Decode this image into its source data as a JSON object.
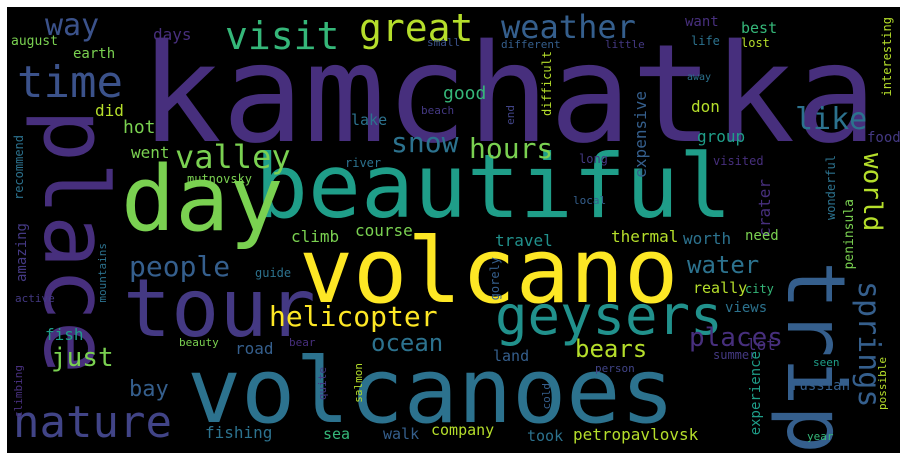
{
  "palette": {
    "background": "#000000",
    "deep_purple": "#472f7d",
    "purple": "#443983",
    "indigo": "#3b528b",
    "slate": "#414487",
    "steel_blue": "#355f8d",
    "blue": "#2c728e",
    "teal": "#21918c",
    "sea_green": "#1f9e89",
    "green": "#35b779",
    "yellow_green": "#7ad151",
    "lime": "#b5de2b",
    "yellow": "#fde725"
  },
  "words": {
    "kamchatka": "kamchatka",
    "volcano": "volcano",
    "volcanoes": "volcanoes",
    "beautiful": "beautiful",
    "place": "place",
    "trip": "trip",
    "tour": "tour",
    "day": "day",
    "geysers": "geysers",
    "nature": "nature",
    "time": "time",
    "visit": "visit",
    "great": "great",
    "weather": "weather",
    "way": "way",
    "like": "like",
    "valley": "valley",
    "snow": "snow",
    "hours": "hours",
    "helicopter": "helicopter",
    "people": "people",
    "springs": "springs",
    "world": "world",
    "water": "water",
    "places": "places",
    "bears": "bears",
    "ocean": "ocean",
    "just": "just",
    "bay": "bay",
    "good": "good",
    "hot": "hot",
    "don": "don",
    "did": "did",
    "days": "days",
    "earth": "earth",
    "august": "august",
    "want": "want",
    "best": "best",
    "life": "life",
    "lost": "lost",
    "small": "small",
    "different": "different",
    "little": "little",
    "interesting": "interesting",
    "difficult": "difficult",
    "away": "away",
    "beach": "beach",
    "end": "end",
    "expensive": "expensive",
    "lake": "lake",
    "group": "group",
    "went": "went",
    "recommend": "recommend",
    "river": "river",
    "mutnovsky": "mutnovsky",
    "long": "long",
    "visited": "visited",
    "food": "food",
    "crater": "crater",
    "wonderful": "wonderful",
    "amazing": "amazing",
    "local": "local",
    "course": "course",
    "climb": "climb",
    "thermal": "thermal",
    "travel": "travel",
    "worth": "worth",
    "need": "need",
    "peninsula": "peninsula",
    "mountains": "mountains",
    "guide": "guide",
    "gorely": "gorely",
    "really": "really",
    "active": "active",
    "city": "city",
    "views": "views",
    "fish": "fish",
    "road": "road",
    "lot": "lot",
    "climbing": "climbing",
    "beauty": "beauty",
    "bear": "bear",
    "land": "land",
    "summer": "summer",
    "seen": "seen",
    "quite": "quite",
    "salmon": "salmon",
    "person": "person",
    "possible": "possible",
    "russian": "russian",
    "cold": "cold",
    "fishing": "fishing",
    "sea": "sea",
    "walk": "walk",
    "company": "company",
    "took": "took",
    "petropavlovsk": "petropavlovsk",
    "experience": "experience",
    "year": "year"
  }
}
